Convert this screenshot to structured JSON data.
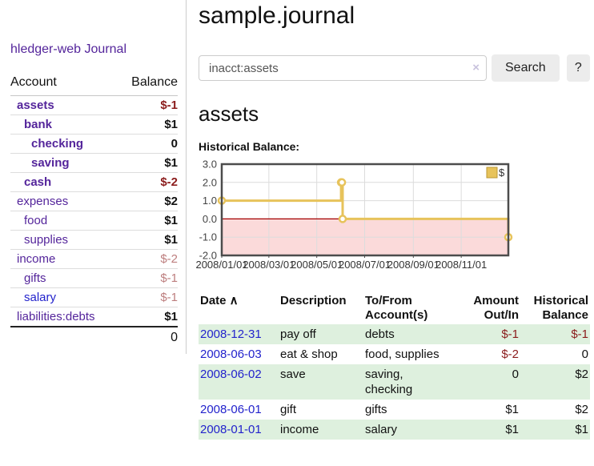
{
  "sidebar": {
    "brand": "hledger-web",
    "journal_link": "Journal",
    "accounts_table": {
      "headers": {
        "account": "Account",
        "balance": "Balance"
      },
      "rows": [
        {
          "name": "assets",
          "depth": 0,
          "balance": "$-1",
          "bold": true,
          "balance_class": "neg-strong"
        },
        {
          "name": "bank",
          "depth": 1,
          "balance": "$1",
          "bold": true,
          "balance_class": ""
        },
        {
          "name": "checking",
          "depth": 2,
          "balance": "0",
          "bold": true,
          "balance_class": ""
        },
        {
          "name": "saving",
          "depth": 2,
          "balance": "$1",
          "bold": true,
          "balance_class": ""
        },
        {
          "name": "cash",
          "depth": 1,
          "balance": "$-2",
          "bold": true,
          "balance_class": "neg-strong"
        },
        {
          "name": "expenses",
          "depth": 0,
          "balance": "$2",
          "bold": false,
          "balance_class": ""
        },
        {
          "name": "food",
          "depth": 1,
          "balance": "$1",
          "bold": false,
          "balance_class": ""
        },
        {
          "name": "supplies",
          "depth": 1,
          "balance": "$1",
          "bold": false,
          "balance_class": ""
        },
        {
          "name": "income",
          "depth": 0,
          "balance": "$-2",
          "bold": false,
          "balance_class": "neg-dim"
        },
        {
          "name": "gifts",
          "depth": 1,
          "balance": "$-1",
          "bold": false,
          "balance_class": "neg-dim"
        },
        {
          "name": "salary",
          "depth": 1,
          "balance": "$-1",
          "bold": false,
          "balance_class": "neg-dim",
          "link_blue": true
        },
        {
          "name": "liabilities:debts",
          "depth": 0,
          "balance": "$1",
          "bold": false,
          "balance_class": ""
        }
      ],
      "total": "0"
    }
  },
  "header": {
    "title": "sample.journal"
  },
  "search": {
    "query": "inacct:assets",
    "clear_icon": "×",
    "button_label": "Search",
    "help_label": "?"
  },
  "account_page": {
    "heading": "assets",
    "chart_label": "Historical Balance:"
  },
  "chart_data": {
    "type": "line",
    "step": true,
    "title": "Historical Balance",
    "series": [
      {
        "name": "$",
        "color": "#e7c35b",
        "points": [
          [
            "2008-01-01",
            1
          ],
          [
            "2008-06-01",
            2
          ],
          [
            "2008-06-02",
            2
          ],
          [
            "2008-06-03",
            0
          ],
          [
            "2008-12-31",
            -1
          ]
        ]
      }
    ],
    "x_range": [
      "2008-01-01",
      "2008-12-31"
    ],
    "x_tick_labels": [
      "2008/01/01",
      "2008/03/01",
      "2008/05/01",
      "2008/07/01",
      "2008/09/01",
      "2008/11/01"
    ],
    "y_ticks": [
      3.0,
      2.0,
      1.0,
      0.0,
      -1.0,
      -2.0
    ],
    "ylim": [
      -2,
      3
    ],
    "grid": true,
    "legend": {
      "label": "$",
      "position": "top-right"
    },
    "colors": {
      "line": "#e7c35b",
      "marker_fill": "#ffffff",
      "negative_region": "#fbdada",
      "zero_line": "#a40000",
      "grid": "#dcdcdc",
      "border": "#4c4c4c",
      "tick_text": "#444444"
    }
  },
  "register_table": {
    "headers": [
      {
        "line1": "Date",
        "line2": "",
        "align": "left",
        "sort_icon": "∧"
      },
      {
        "line1": "Description",
        "line2": "",
        "align": "left"
      },
      {
        "line1": "To/From",
        "line2": "Account(s)",
        "align": "left"
      },
      {
        "line1": "Amount",
        "line2": "Out/In",
        "align": "right"
      },
      {
        "line1": "Historical",
        "line2": "Balance",
        "align": "right"
      }
    ],
    "rows": [
      {
        "date": "2008-12-31",
        "description": "pay off",
        "accounts": "debts",
        "amount": "$-1",
        "amount_neg": true,
        "balance": "$-1",
        "balance_neg": true,
        "stripe": true
      },
      {
        "date": "2008-06-03",
        "description": "eat & shop",
        "accounts": "food, supplies",
        "amount": "$-2",
        "amount_neg": true,
        "balance": "0",
        "balance_neg": false,
        "stripe": false
      },
      {
        "date": "2008-06-02",
        "description": "save",
        "accounts": "saving, checking",
        "amount": "0",
        "amount_neg": false,
        "balance": "$2",
        "balance_neg": false,
        "stripe": true
      },
      {
        "date": "2008-06-01",
        "description": "gift",
        "accounts": "gifts",
        "amount": "$1",
        "amount_neg": false,
        "balance": "$2",
        "balance_neg": false,
        "stripe": false
      },
      {
        "date": "2008-01-01",
        "description": "income",
        "accounts": "salary",
        "amount": "$1",
        "amount_neg": false,
        "balance": "$1",
        "balance_neg": false,
        "stripe": true
      }
    ]
  },
  "colors": {
    "link_purple": "#54259b",
    "link_blue": "#2323cc",
    "negative_strong": "#8b1c1c",
    "negative_dim": "#bd7e7e",
    "row_stripe_green": "#def0de",
    "button_gray": "#ececec"
  }
}
